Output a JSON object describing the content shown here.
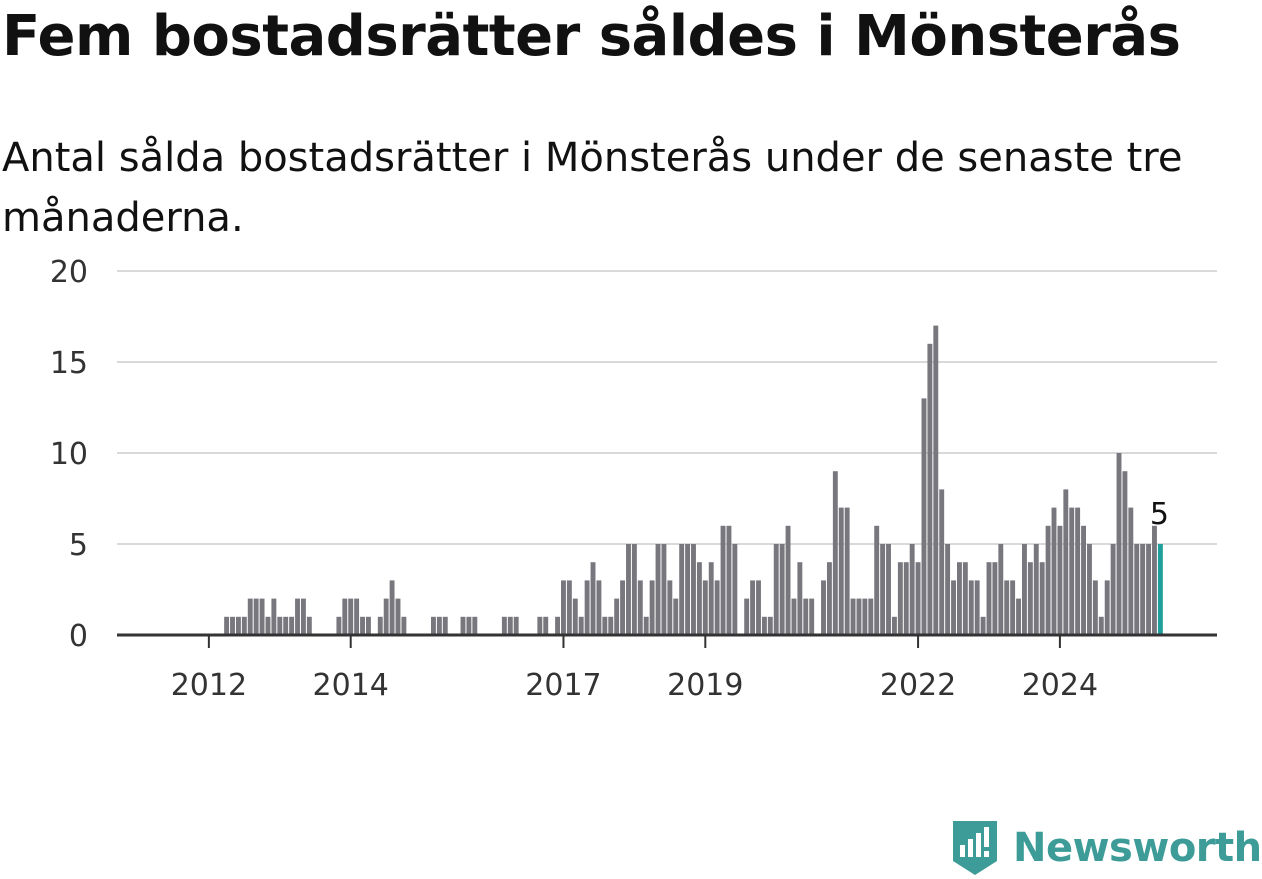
{
  "title": "Fem bostadsrätter såldes i Mönsterås",
  "subtitle": "Antal sålda bostadsrätter i Mönsterås under de senaste tre månaderna.",
  "brand": {
    "name": "Newsworthy",
    "color": "#3d9c98",
    "icon": "newsworthy-logo-icon"
  },
  "colors": {
    "bar": "#78777e",
    "highlight": "#1f9e9b",
    "grid": "#d9d9d9",
    "axis": "#333333"
  },
  "chart_data": {
    "type": "bar",
    "title": "Fem bostadsrätter såldes i Mönsterås",
    "subtitle": "Antal sålda bostadsrätter i Mönsterås under de senaste tre månaderna.",
    "xlabel": "",
    "ylabel": "",
    "ylim": [
      0,
      20
    ],
    "y_ticks": [
      0,
      5,
      10,
      15,
      20
    ],
    "grid": true,
    "start": "2011-06",
    "x_tick_labels": [
      {
        "label": "2012",
        "month": "2012-01"
      },
      {
        "label": "2014",
        "month": "2014-01"
      },
      {
        "label": "2017",
        "month": "2017-01"
      },
      {
        "label": "2019",
        "month": "2019-01"
      },
      {
        "label": "2022",
        "month": "2022-01"
      },
      {
        "label": "2024",
        "month": "2024-01"
      }
    ],
    "highlight_label": "5",
    "series": [
      {
        "values": [
          0,
          0,
          0,
          0,
          0,
          0,
          0,
          0,
          0,
          0,
          1,
          1,
          1,
          1,
          2,
          2,
          2,
          1,
          2,
          1,
          1,
          1,
          2,
          2,
          1,
          0,
          0,
          0,
          0,
          1,
          2,
          2,
          2,
          1,
          1,
          0,
          1,
          2,
          3,
          2,
          1,
          0,
          0,
          0,
          0,
          1,
          1,
          1,
          0,
          0,
          1,
          1,
          1,
          0,
          0,
          0,
          0,
          1,
          1,
          1,
          0,
          0,
          0,
          1,
          1,
          0,
          1,
          3,
          3,
          2,
          1,
          3,
          4,
          3,
          1,
          1,
          2,
          3,
          5,
          5,
          3,
          1,
          3,
          5,
          5,
          3,
          2,
          5,
          5,
          5,
          4,
          3,
          4,
          3,
          6,
          6,
          5,
          0,
          2,
          3,
          3,
          1,
          1,
          5,
          5,
          6,
          2,
          4,
          2,
          2,
          0,
          3,
          4,
          9,
          7,
          7,
          2,
          2,
          2,
          2,
          6,
          5,
          5,
          1,
          4,
          4,
          5,
          4,
          13,
          16,
          17,
          8,
          5,
          3,
          4,
          4,
          3,
          3,
          1,
          4,
          4,
          5,
          3,
          3,
          2,
          5,
          4,
          5,
          4,
          6,
          7,
          6,
          8,
          7,
          7,
          6,
          5,
          3,
          1,
          3,
          5,
          10,
          9,
          7,
          5,
          5,
          5,
          6,
          5
        ]
      }
    ]
  }
}
